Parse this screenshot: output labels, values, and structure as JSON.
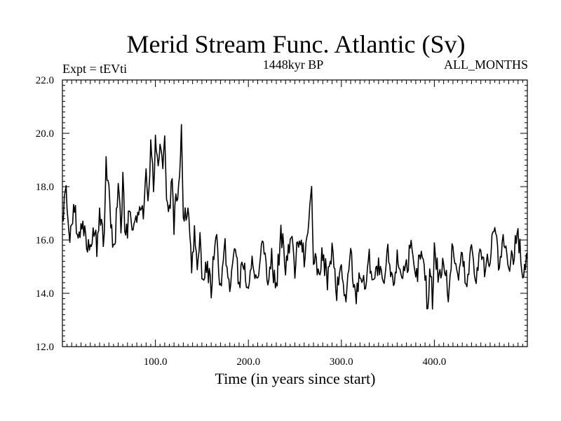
{
  "chart_data": {
    "type": "line",
    "title": "Merid Stream Func. Atlantic (Sv)",
    "subtitle_left": "Expt = tEVti",
    "subtitle_center": "1448kyr BP",
    "subtitle_right": "ALL_MONTHS",
    "xlabel": "Time (in years since start)",
    "ylabel": "",
    "xlim": [
      0,
      500
    ],
    "ylim": [
      12.0,
      22.0
    ],
    "x_ticks": [
      100,
      200,
      300,
      400
    ],
    "x_tick_labels": [
      "100.0",
      "200.0",
      "300.0",
      "400.0"
    ],
    "y_ticks": [
      12,
      14,
      16,
      18,
      20,
      22
    ],
    "y_tick_labels": [
      "12.0",
      "14.0",
      "16.0",
      "18.0",
      "20.0",
      "22.0"
    ],
    "grid": false,
    "line_color": "#000000",
    "anchors": {
      "x": [
        0,
        3,
        5,
        8,
        12,
        17,
        22,
        28,
        33,
        37,
        40,
        45,
        47,
        52,
        55,
        57,
        60,
        63,
        65,
        68,
        72,
        75,
        80,
        84,
        88,
        90,
        93,
        95,
        98,
        100,
        103,
        105,
        108,
        110,
        112,
        115,
        118,
        120,
        123,
        126,
        128,
        130,
        133,
        136,
        139,
        142,
        145,
        148,
        150,
        155,
        160,
        165,
        170,
        175,
        180,
        185,
        190,
        195,
        200,
        205,
        210,
        215,
        220,
        225,
        230,
        235,
        240,
        245,
        250,
        255,
        260,
        265,
        268,
        270,
        275,
        280,
        285,
        290,
        295,
        300,
        305,
        310,
        315,
        320,
        325,
        330,
        335,
        340,
        345,
        350,
        355,
        360,
        365,
        370,
        375,
        380,
        385,
        390,
        393,
        395,
        398,
        400,
        405,
        410,
        415,
        420,
        425,
        430,
        435,
        440,
        445,
        450,
        455,
        460,
        465,
        470,
        475,
        480,
        485,
        490,
        495,
        500
      ],
      "y": [
        16.5,
        18.2,
        17.0,
        16.3,
        17.3,
        16.2,
        16.8,
        15.6,
        16.5,
        15.8,
        17.0,
        15.9,
        19.1,
        16.7,
        15.5,
        16.2,
        17.9,
        16.3,
        18.4,
        15.9,
        17.0,
        16.8,
        16.4,
        17.3,
        17.1,
        18.4,
        17.6,
        19.8,
        17.8,
        19.5,
        18.6,
        19.9,
        18.3,
        19.7,
        17.8,
        17.0,
        18.5,
        16.5,
        17.8,
        18.0,
        20.5,
        17.2,
        16.6,
        16.9,
        15.2,
        16.4,
        14.6,
        15.9,
        14.5,
        15.2,
        14.2,
        16.5,
        14.3,
        15.6,
        14.0,
        16.0,
        14.3,
        15.2,
        13.9,
        15.4,
        14.2,
        15.8,
        14.6,
        15.3,
        14.1,
        16.4,
        14.9,
        16.2,
        15.0,
        16.4,
        15.2,
        16.7,
        17.6,
        15.3,
        14.7,
        15.5,
        14.5,
        15.6,
        14.0,
        15.0,
        13.6,
        15.6,
        13.8,
        14.9,
        14.2,
        15.3,
        14.5,
        15.0,
        14.1,
        15.5,
        14.3,
        15.3,
        14.8,
        15.1,
        15.6,
        14.4,
        15.5,
        14.8,
        13.3,
        15.0,
        13.8,
        15.7,
        14.6,
        15.2,
        14.0,
        15.8,
        14.6,
        15.4,
        14.1,
        15.9,
        14.6,
        15.7,
        14.7,
        15.5,
        16.3,
        14.9,
        16.0,
        14.8,
        15.4,
        16.2,
        14.7,
        15.3
      ]
    }
  }
}
